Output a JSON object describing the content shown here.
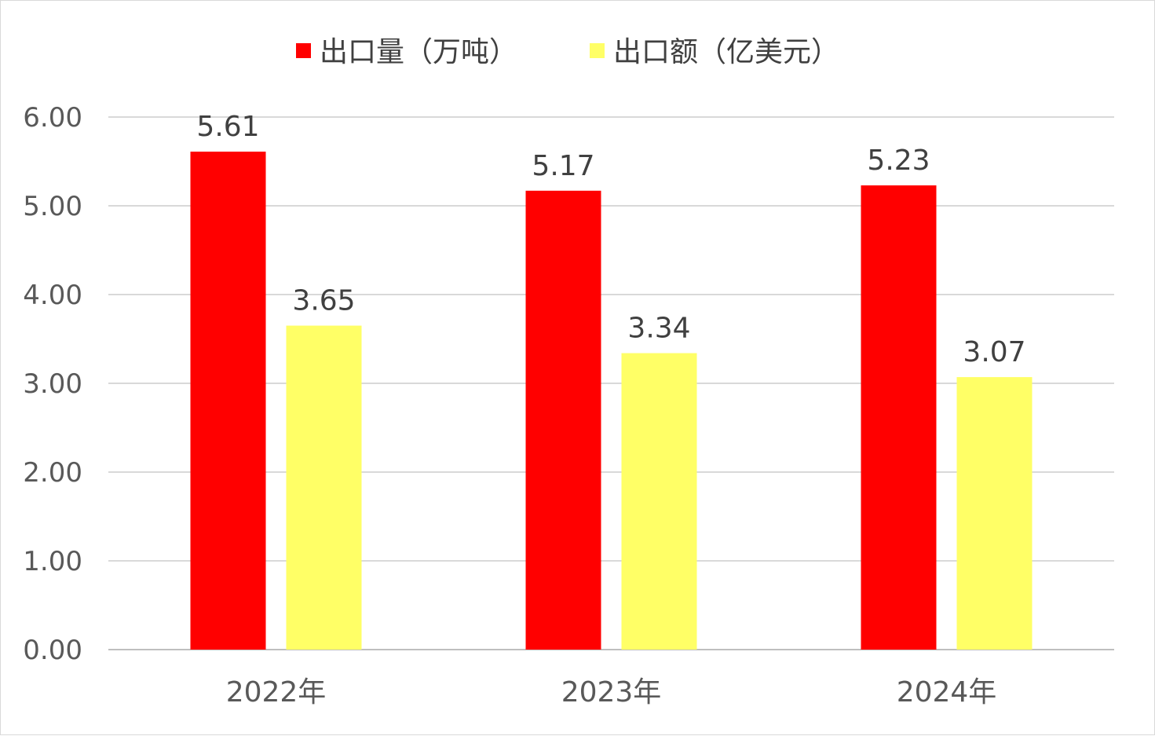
{
  "chart_data": {
    "type": "bar",
    "categories": [
      "2022年",
      "2023年",
      "2024年"
    ],
    "series": [
      {
        "name": "出口量（万吨）",
        "values": [
          5.61,
          5.17,
          5.23
        ],
        "color": "#ff0000"
      },
      {
        "name": "出口额（亿美元）",
        "values": [
          3.65,
          3.34,
          3.07
        ],
        "color": "#ffff66"
      }
    ],
    "ylim": [
      0,
      6
    ],
    "yticks": [
      "0.00",
      "1.00",
      "2.00",
      "3.00",
      "4.00",
      "5.00",
      "6.00"
    ],
    "data_labels": [
      [
        "5.61",
        "5.17",
        "5.23"
      ],
      [
        "3.65",
        "3.34",
        "3.07"
      ]
    ],
    "grid": true,
    "legend_position": "top",
    "title": "",
    "xlabel": "",
    "ylabel": ""
  }
}
